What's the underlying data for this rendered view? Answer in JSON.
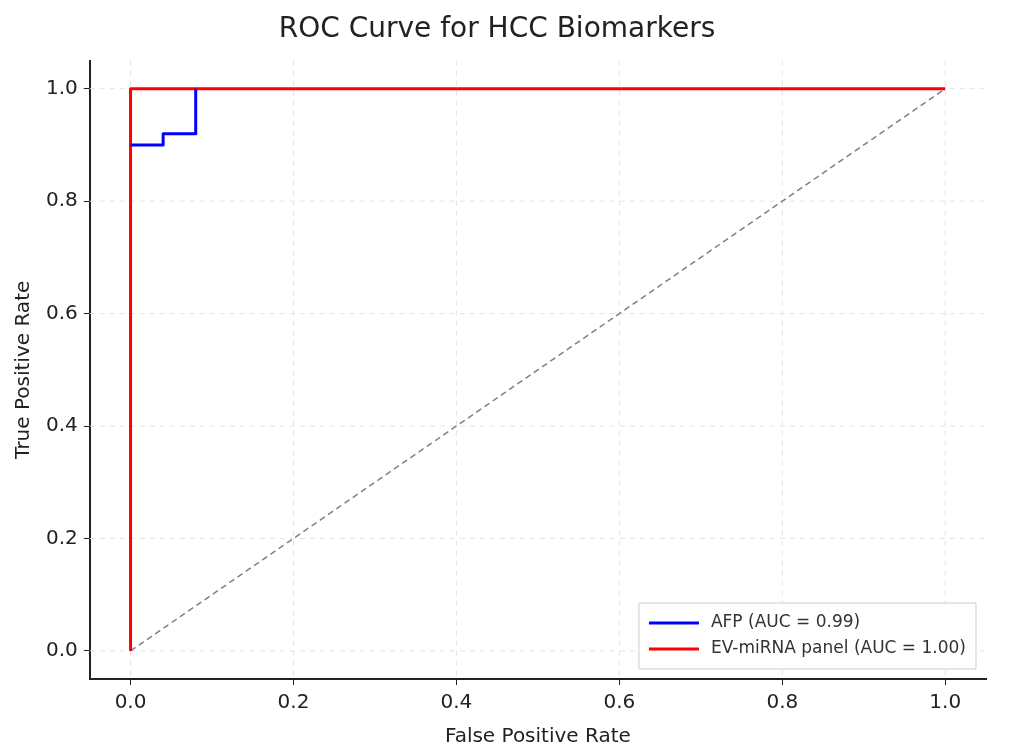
{
  "chart_data": {
    "type": "line",
    "title": "ROC Curve for HCC Biomarkers",
    "xlabel": "False Positive Rate",
    "ylabel": "True Positive Rate",
    "xlim": [
      -0.05,
      1.05
    ],
    "ylim": [
      -0.05,
      1.05
    ],
    "xticks": [
      {
        "value": 0,
        "label": "0.0"
      },
      {
        "value": 0.2,
        "label": "0.2"
      },
      {
        "value": 0.4,
        "label": "0.4"
      },
      {
        "value": 0.6,
        "label": "0.6"
      },
      {
        "value": 0.8,
        "label": "0.8"
      },
      {
        "value": 1,
        "label": "1.0"
      }
    ],
    "yticks": [
      {
        "value": 0,
        "label": "0.0"
      },
      {
        "value": 0.2,
        "label": "0.2"
      },
      {
        "value": 0.4,
        "label": "0.4"
      },
      {
        "value": 0.6,
        "label": "0.6"
      },
      {
        "value": 0.8,
        "label": "0.8"
      },
      {
        "value": 1,
        "label": "1.0"
      }
    ],
    "grid": true,
    "legend": "bottom right",
    "marker": "none",
    "series": [
      {
        "name": "AFP (AUC = 0.99)",
        "color": "#0000ff",
        "x": [
          0,
          0.04,
          0.04,
          0.08,
          0.08
        ],
        "values": [
          0.9,
          0.9,
          0.92,
          0.92,
          1.0
        ]
      },
      {
        "name": "EV-miRNA panel (AUC = 1.00)",
        "color": "#ff0000",
        "x": [
          0,
          0,
          1
        ],
        "values": [
          0,
          1,
          1
        ]
      },
      {
        "color": "#808080",
        "line_style": "dashed",
        "x": [
          0,
          1
        ],
        "values": [
          0,
          1
        ]
      }
    ]
  }
}
